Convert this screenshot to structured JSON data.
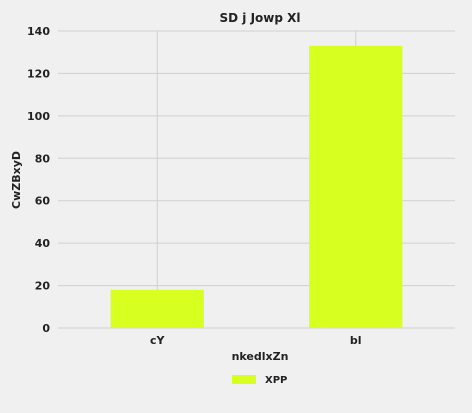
{
  "chart_data": {
    "type": "bar",
    "title": "SD j Jowp Xl",
    "xlabel": "nkedlxZn",
    "ylabel": "CwZBxyD",
    "categories": [
      "cY",
      "bl"
    ],
    "series": [
      {
        "name": "XPP",
        "values": [
          18,
          133
        ],
        "color": "#d7ff1f"
      }
    ],
    "ylim": [
      0,
      140
    ],
    "yticks": [
      0,
      20,
      40,
      60,
      80,
      100,
      120,
      140
    ],
    "grid": true,
    "legend_position": "bottom-center"
  },
  "colors": {
    "background": "#f0f0f0",
    "grid": "#cfcfcf",
    "text": "#222222"
  }
}
